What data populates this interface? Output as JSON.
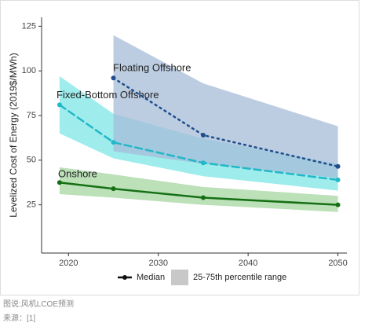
{
  "chart_data": {
    "type": "band-line",
    "y_label": "Levelized Cost of Energy (2019$/MWh)",
    "xlim": [
      2017,
      2051
    ],
    "xticks": [
      2020,
      2030,
      2040,
      2050
    ],
    "ylim": [
      -2,
      130
    ],
    "yticks": [
      25,
      50,
      75,
      100,
      125
    ],
    "series": [
      {
        "name": "Onshore",
        "color": "#157015",
        "band_color": "#a6d5a0",
        "dash": "solid",
        "x": [
          2019,
          2025,
          2035,
          2050
        ],
        "values": [
          37.5,
          34,
          29,
          25
        ],
        "low": [
          31,
          29,
          25,
          21
        ],
        "high": [
          46,
          42,
          35,
          30
        ]
      },
      {
        "name": "Fixed-Bottom Offshore",
        "color": "#22b8c8",
        "band_color": "#7ee6e6",
        "dash": "dashed",
        "x": [
          2019,
          2025,
          2035,
          2050
        ],
        "values": [
          81,
          60,
          48.5,
          39
        ],
        "low": [
          65,
          51,
          41,
          33
        ],
        "high": [
          97,
          76,
          62,
          48
        ]
      },
      {
        "name": "Floating Offshore",
        "color": "#1f4e8c",
        "band_color": "#a5bcd8",
        "dash": "dotted",
        "x": [
          2025,
          2035,
          2050
        ],
        "values": [
          96,
          64,
          46.5
        ],
        "low": [
          55,
          48,
          40
        ],
        "high": [
          120,
          93,
          69
        ]
      }
    ],
    "legend": {
      "median": "Median",
      "range": "25-75th percentile range"
    },
    "caption": "图说:风机LCOE预测",
    "source": "来源：[1]"
  }
}
